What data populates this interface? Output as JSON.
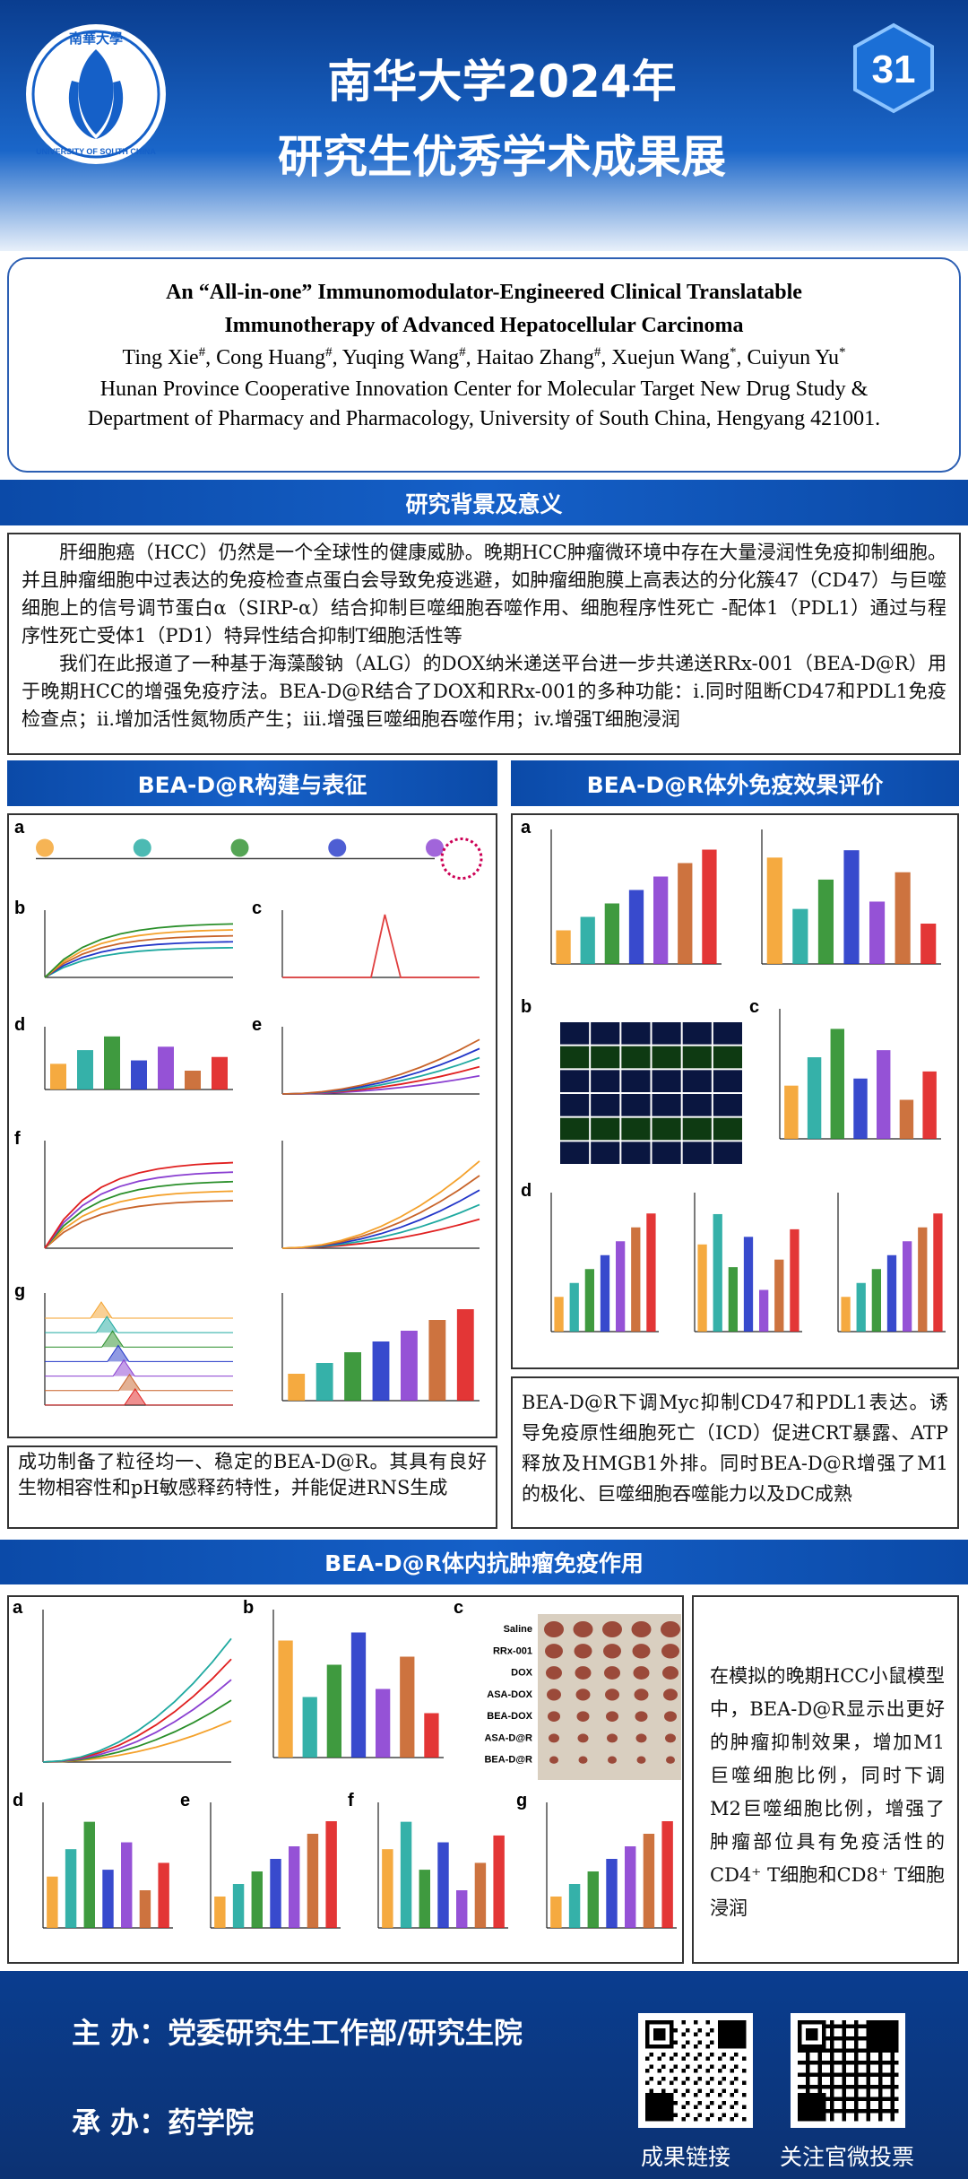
{
  "header": {
    "logo_chinese": "南華大學",
    "logo_english": "UNIVERSITY OF SOUTH CHINA",
    "title_line1": "南华大学2024年",
    "title_line2": "研究生优秀学术成果展",
    "badge": "31"
  },
  "paper": {
    "title_line1": "An “All-in-one” Immunomodulator-Engineered Clinical Translatable",
    "title_line2": "Immunotherapy of Advanced Hepatocellular Carcinoma",
    "authors": [
      {
        "name": "Ting Xie",
        "mark": "#"
      },
      {
        "name": "Cong Huang",
        "mark": "#"
      },
      {
        "name": "Yuqing Wang",
        "mark": "#"
      },
      {
        "name": "Haitao Zhang",
        "mark": "#"
      },
      {
        "name": "Xuejun Wang",
        "mark": "*"
      },
      {
        "name": "Cuiyun Yu",
        "mark": "*"
      }
    ],
    "affiliation_line1": "Hunan Province Cooperative Innovation Center for Molecular Target New Drug Study &",
    "affiliation_line2": "Department of Pharmacy and Pharmacology, University of South China, Hengyang 421001."
  },
  "background": {
    "heading": "研究背景及意义",
    "paragraphs": [
      "肝细胞癌（HCC）仍然是一个全球性的健康威胁。晚期HCC肿瘤微环境中存在大量浸润性免疫抑制细胞。并且肿瘤细胞中过表达的免疫检查点蛋白会导致免疫逃避，如肿瘤细胞膜上高表达的分化簇47（CD47）与巨噬细胞上的信号调节蛋白α（SIRP-α）结合抑制巨噬细胞吞噬作用、细胞程序性死亡 -配体1（PDL1）通过与程序性死亡受体1（PD1）特异性结合抑制T细胞活性等",
      "我们在此报道了一种基于海藻酸钠（ALG）的DOX纳米递送平台进一步共递送RRx-001（BEA-D@R）用于晚期HCC的增强免疫疗法。BEA-D@R结合了DOX和RRx-001的多种功能：i.同时阻断CD47和PDL1免疫检查点；ii.增加活性氮物质产生；iii.增强巨噬细胞吞噬作用；iv.增强T细胞浸润"
    ]
  },
  "construction": {
    "heading": "BEA-D@R构建与表征",
    "panels": [
      "a",
      "b",
      "c",
      "d",
      "e",
      "f",
      "g"
    ],
    "summary": "成功制备了粒径均一、稳定的BEA-D@R。其具有良好生物相容性和pH敏感释药特性，并能促进RNS生成"
  },
  "in_vitro": {
    "heading": "BEA-D@R体外免疫效果评价",
    "panels": [
      "a",
      "b",
      "c",
      "d"
    ],
    "summary": "BEA-D@R下调Myc抑制CD47和PDL1表达。诱导免疫原性细胞死亡（ICD）促进CRT暴露、ATP释放及HMGB1外排。同时BEA-D@R增强了M1的极化、巨噬细胞吞噬能力以及DC成熟"
  },
  "in_vivo": {
    "heading": "BEA-D@R体内抗肿瘤免疫作用",
    "panels": [
      "a",
      "b",
      "c",
      "d",
      "e",
      "f",
      "g"
    ],
    "groups": [
      "Saline",
      "RRx-001",
      "DOX",
      "ASA-DOX",
      "BEA-DOX",
      "ASA-D@R",
      "BEA-D@R"
    ],
    "summary": "在模拟的晚期HCC小鼠模型中，BEA-D@R显示出更好的肿瘤抑制效果，增加M1巨噬细胞比例，同时下调M2巨噬细胞比例，增强了肿瘤部位具有免疫活性的CD4⁺ T细胞和CD8⁺ T细胞浸润"
  },
  "footer": {
    "host": "主 办：党委研究生工作部/研究生院",
    "organizer": "承 办：药学院",
    "qr1_label": "成果链接",
    "qr2_label": "关注官微投票"
  }
}
